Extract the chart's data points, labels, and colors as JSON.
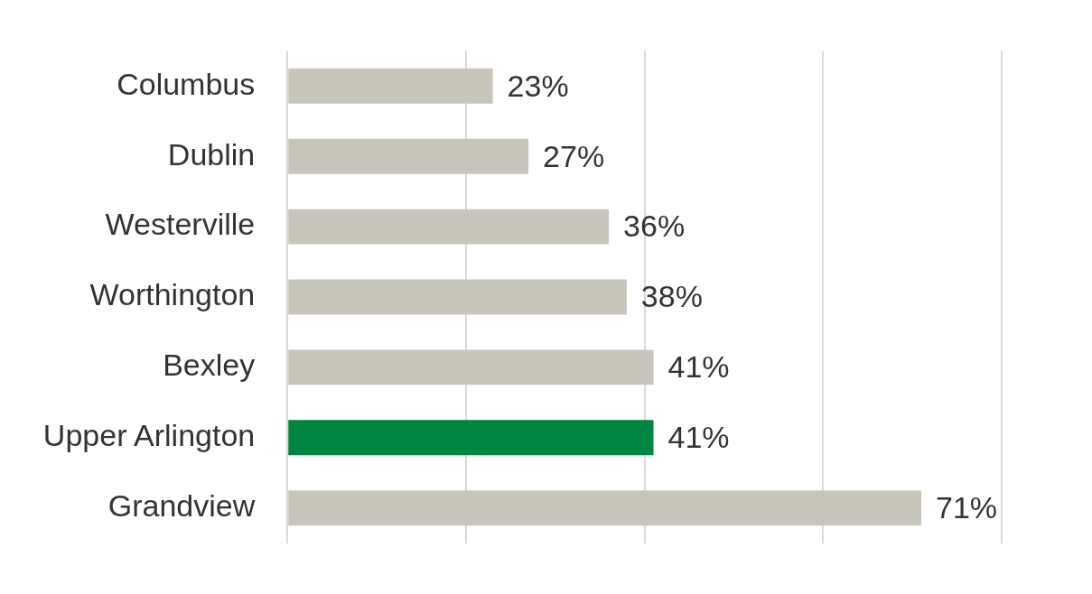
{
  "chart_data": {
    "type": "bar",
    "orientation": "horizontal",
    "categories": [
      "Columbus",
      "Dublin",
      "Westerville",
      "Worthington",
      "Bexley",
      "Upper Arlington",
      "Grandview"
    ],
    "values": [
      23,
      27,
      36,
      38,
      41,
      41,
      71
    ],
    "colors": [
      "#c8c5bb",
      "#c8c5bb",
      "#c8c5bb",
      "#c8c5bb",
      "#c8c5bb",
      "#008540",
      "#c8c5bb"
    ],
    "value_labels": [
      "23%",
      "27%",
      "36%",
      "38%",
      "41%",
      "41%",
      "71%"
    ],
    "xlim": [
      0,
      80
    ],
    "xticks": [
      {
        "value": 0,
        "label": null
      },
      {
        "value": 20,
        "label": null
      },
      {
        "value": 40,
        "label": null
      },
      {
        "value": 60,
        "label": null
      },
      {
        "value": 80,
        "label": null
      }
    ],
    "grid": "x",
    "tick_labels": "y",
    "legend": false
  }
}
